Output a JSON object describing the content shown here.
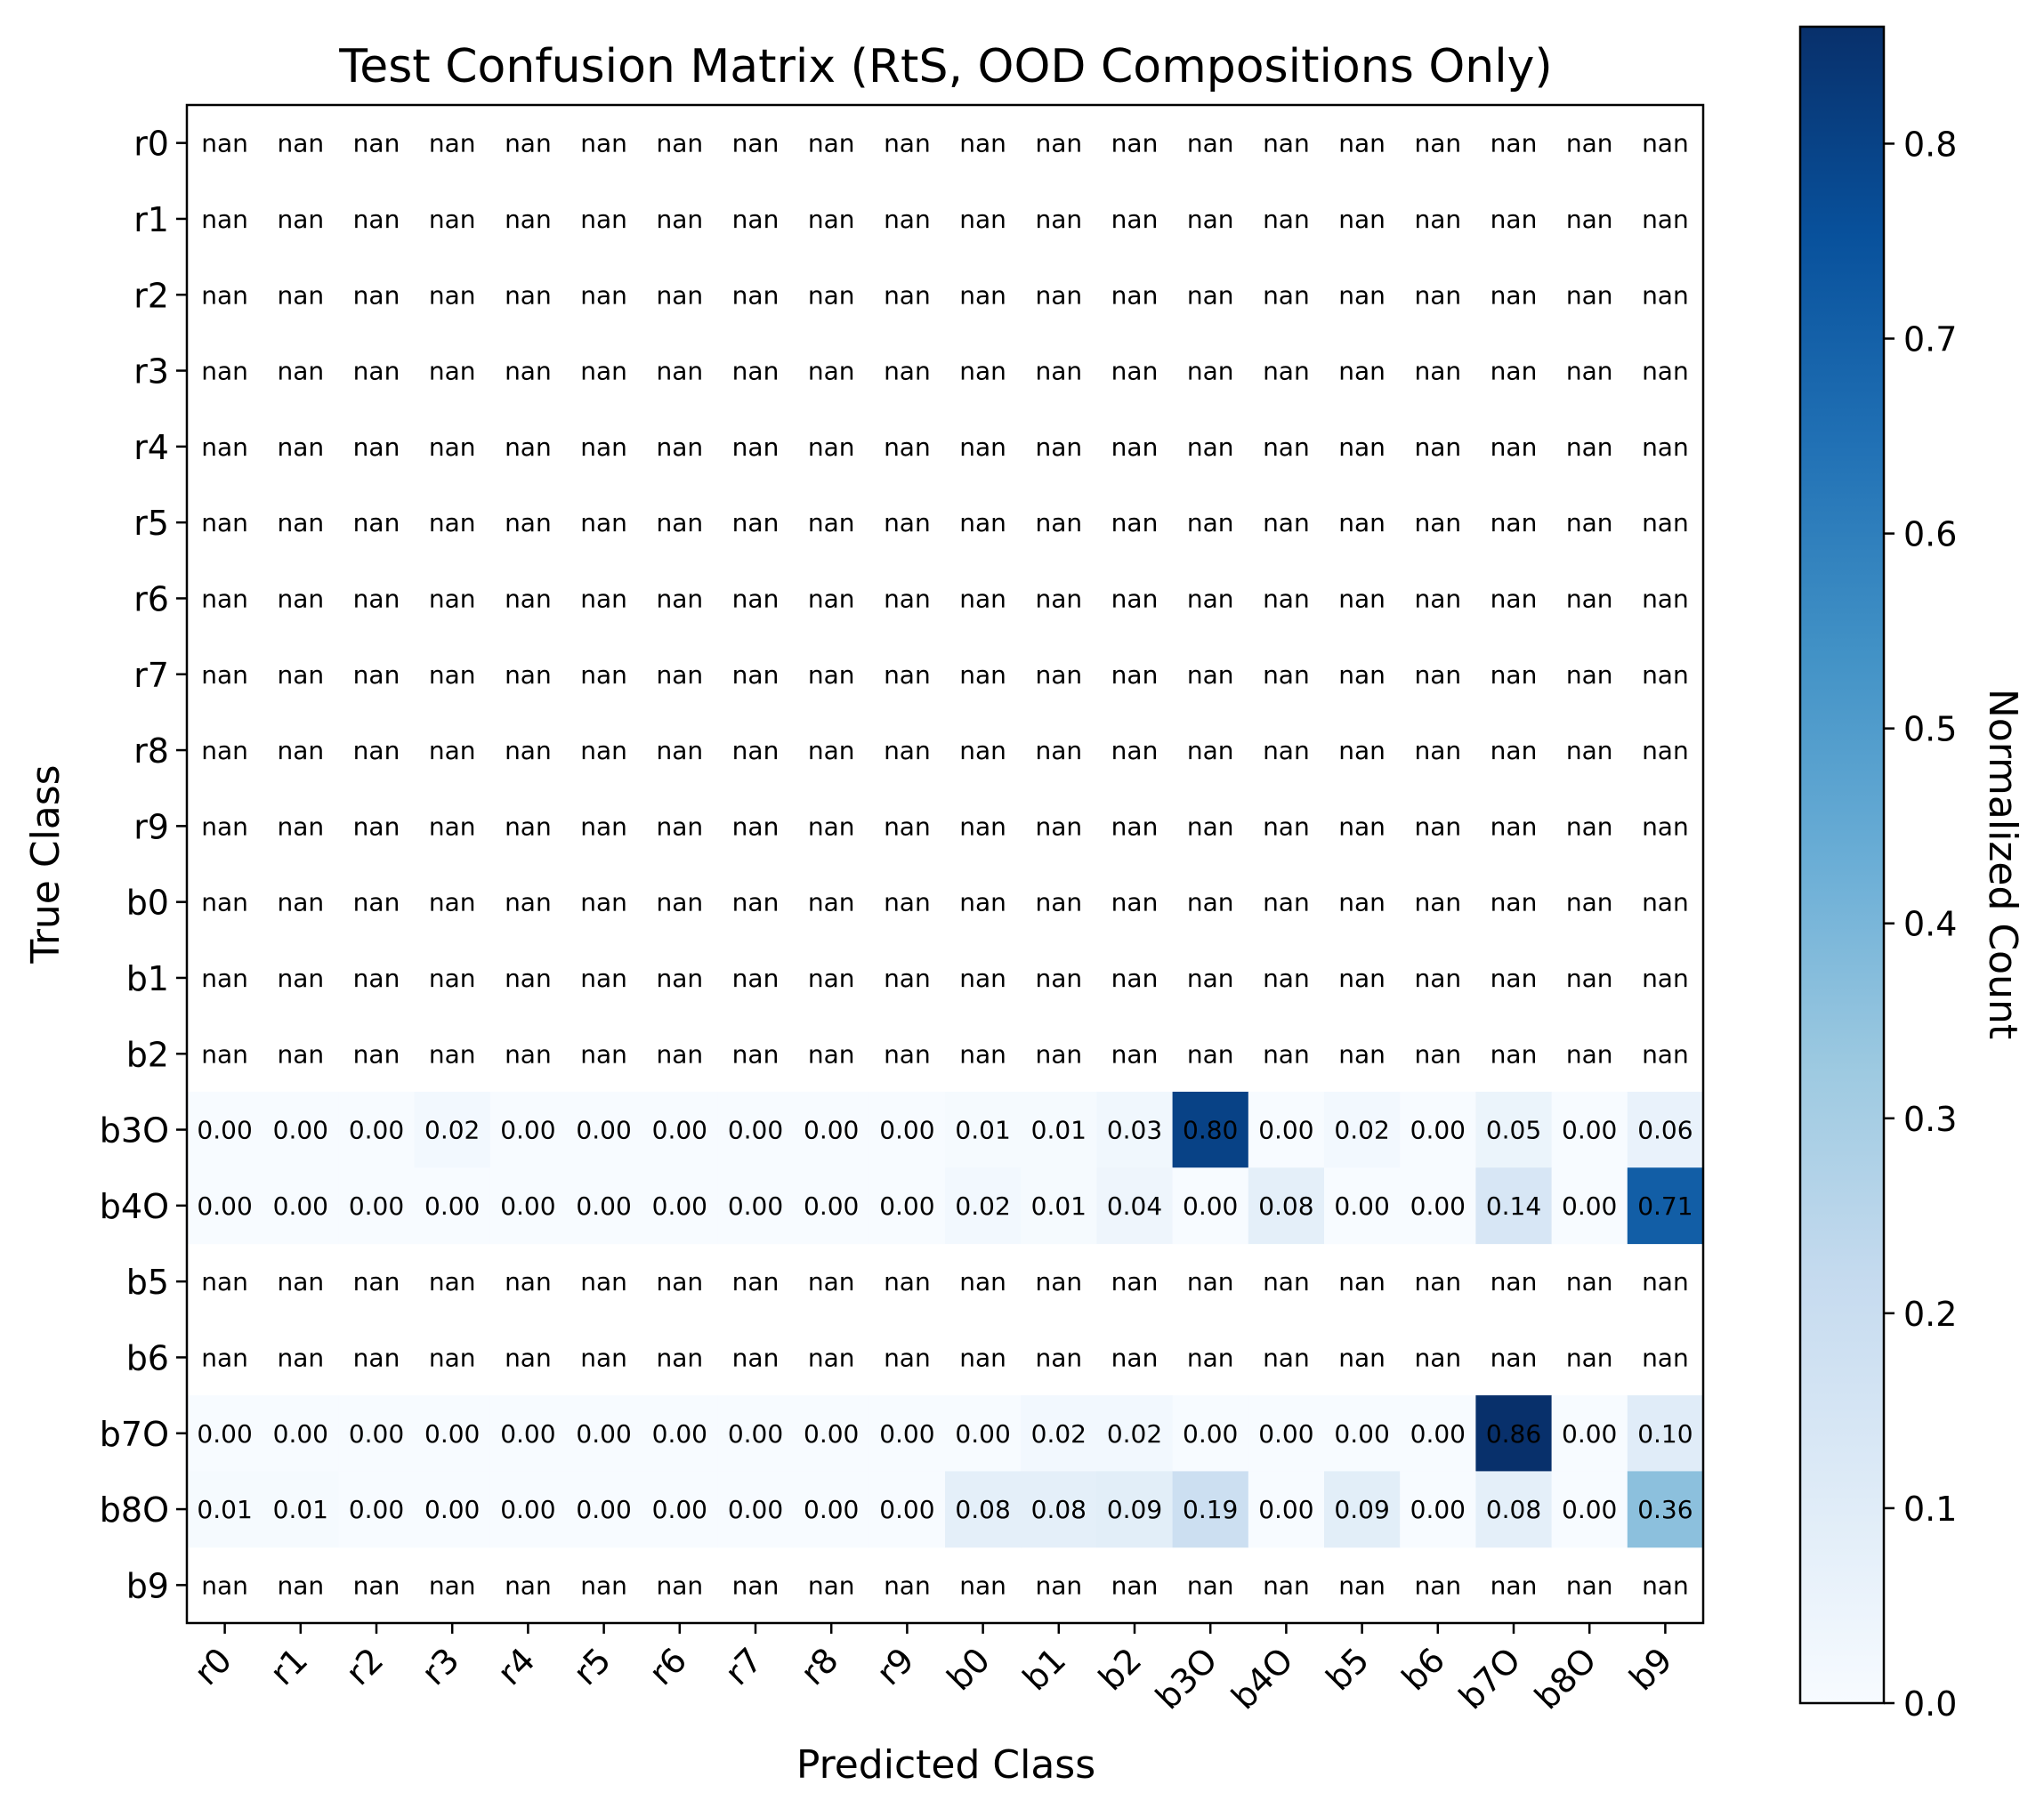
{
  "chart_data": {
    "type": "heatmap",
    "title": "Test Confusion Matrix (RtS, OOD Compositions Only)",
    "xlabel": "Predicted Class",
    "ylabel": "True Class",
    "x_categories": [
      "r0",
      "r1",
      "r2",
      "r3",
      "r4",
      "r5",
      "r6",
      "r7",
      "r8",
      "r9",
      "b0",
      "b1",
      "b2",
      "b3O",
      "b4O",
      "b5",
      "b6",
      "b7O",
      "b8O",
      "b9"
    ],
    "y_categories": [
      "r0",
      "r1",
      "r2",
      "r3",
      "r4",
      "r5",
      "r6",
      "r7",
      "r8",
      "r9",
      "b0",
      "b1",
      "b2",
      "b3O",
      "b4O",
      "b5",
      "b6",
      "b7O",
      "b8O",
      "b9"
    ],
    "values": [
      [
        null,
        null,
        null,
        null,
        null,
        null,
        null,
        null,
        null,
        null,
        null,
        null,
        null,
        null,
        null,
        null,
        null,
        null,
        null,
        null
      ],
      [
        null,
        null,
        null,
        null,
        null,
        null,
        null,
        null,
        null,
        null,
        null,
        null,
        null,
        null,
        null,
        null,
        null,
        null,
        null,
        null
      ],
      [
        null,
        null,
        null,
        null,
        null,
        null,
        null,
        null,
        null,
        null,
        null,
        null,
        null,
        null,
        null,
        null,
        null,
        null,
        null,
        null
      ],
      [
        null,
        null,
        null,
        null,
        null,
        null,
        null,
        null,
        null,
        null,
        null,
        null,
        null,
        null,
        null,
        null,
        null,
        null,
        null,
        null
      ],
      [
        null,
        null,
        null,
        null,
        null,
        null,
        null,
        null,
        null,
        null,
        null,
        null,
        null,
        null,
        null,
        null,
        null,
        null,
        null,
        null
      ],
      [
        null,
        null,
        null,
        null,
        null,
        null,
        null,
        null,
        null,
        null,
        null,
        null,
        null,
        null,
        null,
        null,
        null,
        null,
        null,
        null
      ],
      [
        null,
        null,
        null,
        null,
        null,
        null,
        null,
        null,
        null,
        null,
        null,
        null,
        null,
        null,
        null,
        null,
        null,
        null,
        null,
        null
      ],
      [
        null,
        null,
        null,
        null,
        null,
        null,
        null,
        null,
        null,
        null,
        null,
        null,
        null,
        null,
        null,
        null,
        null,
        null,
        null,
        null
      ],
      [
        null,
        null,
        null,
        null,
        null,
        null,
        null,
        null,
        null,
        null,
        null,
        null,
        null,
        null,
        null,
        null,
        null,
        null,
        null,
        null
      ],
      [
        null,
        null,
        null,
        null,
        null,
        null,
        null,
        null,
        null,
        null,
        null,
        null,
        null,
        null,
        null,
        null,
        null,
        null,
        null,
        null
      ],
      [
        null,
        null,
        null,
        null,
        null,
        null,
        null,
        null,
        null,
        null,
        null,
        null,
        null,
        null,
        null,
        null,
        null,
        null,
        null,
        null
      ],
      [
        null,
        null,
        null,
        null,
        null,
        null,
        null,
        null,
        null,
        null,
        null,
        null,
        null,
        null,
        null,
        null,
        null,
        null,
        null,
        null
      ],
      [
        null,
        null,
        null,
        null,
        null,
        null,
        null,
        null,
        null,
        null,
        null,
        null,
        null,
        null,
        null,
        null,
        null,
        null,
        null,
        null
      ],
      [
        0.0,
        0.0,
        0.0,
        0.02,
        0.0,
        0.0,
        0.0,
        0.0,
        0.0,
        0.0,
        0.01,
        0.01,
        0.03,
        0.8,
        0.0,
        0.02,
        0.0,
        0.05,
        0.0,
        0.06
      ],
      [
        0.0,
        0.0,
        0.0,
        0.0,
        0.0,
        0.0,
        0.0,
        0.0,
        0.0,
        0.0,
        0.02,
        0.01,
        0.04,
        0.0,
        0.08,
        0.0,
        0.0,
        0.14,
        0.0,
        0.71
      ],
      [
        null,
        null,
        null,
        null,
        null,
        null,
        null,
        null,
        null,
        null,
        null,
        null,
        null,
        null,
        null,
        null,
        null,
        null,
        null,
        null
      ],
      [
        null,
        null,
        null,
        null,
        null,
        null,
        null,
        null,
        null,
        null,
        null,
        null,
        null,
        null,
        null,
        null,
        null,
        null,
        null,
        null
      ],
      [
        0.0,
        0.0,
        0.0,
        0.0,
        0.0,
        0.0,
        0.0,
        0.0,
        0.0,
        0.0,
        0.0,
        0.02,
        0.02,
        0.0,
        0.0,
        0.0,
        0.0,
        0.86,
        0.0,
        0.1
      ],
      [
        0.01,
        0.01,
        0.0,
        0.0,
        0.0,
        0.0,
        0.0,
        0.0,
        0.0,
        0.0,
        0.08,
        0.08,
        0.09,
        0.19,
        0.0,
        0.09,
        0.0,
        0.08,
        0.0,
        0.36
      ],
      [
        null,
        null,
        null,
        null,
        null,
        null,
        null,
        null,
        null,
        null,
        null,
        null,
        null,
        null,
        null,
        null,
        null,
        null,
        null,
        null
      ]
    ],
    "nan_label": "nan",
    "value_format_decimals": 2,
    "colormap": "Blues",
    "colorbar": {
      "label": "Normalized Count",
      "range": [
        0.0,
        0.86
      ],
      "ticks": [
        0.0,
        0.1,
        0.2,
        0.3,
        0.4,
        0.5,
        0.6,
        0.7,
        0.8
      ],
      "tick_labels": [
        "0.0",
        "0.1",
        "0.2",
        "0.3",
        "0.4",
        "0.5",
        "0.6",
        "0.7",
        "0.8"
      ]
    },
    "grid": false,
    "legend": "none"
  }
}
